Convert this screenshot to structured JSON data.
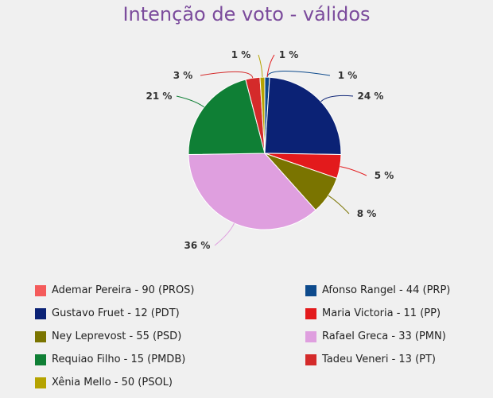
{
  "chart_data": {
    "type": "pie",
    "title": "Intenção de voto - válidos",
    "series": [
      {
        "name": "Ademar Pereira - 90 (PROS)",
        "value": 0,
        "color": "#f45b5b"
      },
      {
        "name": "Afonso Rangel - 44 (PRP)",
        "value": 1,
        "label": "1 %",
        "color": "#0d4a8c"
      },
      {
        "name": "Gustavo Fruet - 12 (PDT)",
        "value": 24,
        "label": "24 %",
        "color": "#0b2275"
      },
      {
        "name": "Maria Victoria - 11 (PP)",
        "value": 5,
        "label": "5 %",
        "color": "#e31a1c"
      },
      {
        "name": "Ney Leprevost - 55 (PSD)",
        "value": 8,
        "label": "8 %",
        "color": "#7a7400"
      },
      {
        "name": "Rafael Greca - 33 (PMN)",
        "value": 36,
        "label": "36 %",
        "color": "#df9fdf"
      },
      {
        "name": "Requiao Filho - 15 (PMDB)",
        "value": 21,
        "label": "21 %",
        "color": "#0f7f35"
      },
      {
        "name": "Tadeu Veneri - 13 (PT)",
        "value": 3,
        "label": "3 %",
        "color": "#d42a2a"
      },
      {
        "name": "Xênia Mello - 50 (PSOL)",
        "value": 1,
        "label": "1 %",
        "color": "#b5a300"
      }
    ],
    "extra_labels": [
      {
        "text": "1 %",
        "color": "#e31a1c"
      }
    ],
    "legend_position": "bottom"
  }
}
